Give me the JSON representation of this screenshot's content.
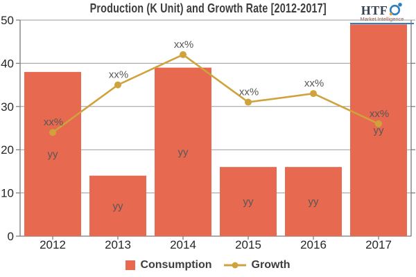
{
  "title": "Production (K Unit) and Growth Rate [2012-2017]",
  "logo": {
    "name": "HTF",
    "subtitle": "Market Intelligence"
  },
  "legend": {
    "consumption": "Consumption",
    "growth": "Growth"
  },
  "colors": {
    "bar": "#e7694f",
    "line": "#cfa23c",
    "grid": "#9a9a9a",
    "axis": "#767676",
    "tick_text": "#262626",
    "data_label": "#575757",
    "title_text": "#3d3d3d",
    "logo_blue": "#2d7fc1",
    "logo_text": "#33404f",
    "logo_sub": "#95564a",
    "logo_accent": "#e8a33d"
  },
  "chart_data": {
    "type": "combo",
    "title": "Production (K Unit) and Growth Rate [2012-2017]",
    "categories": [
      "2012",
      "2013",
      "2014",
      "2015",
      "2016",
      "2017"
    ],
    "series": [
      {
        "name": "Consumption",
        "type": "bar",
        "values": [
          38,
          14,
          39,
          16,
          16,
          49
        ],
        "color": "#e7694f",
        "point_labels": [
          "yy",
          "yy",
          "yy",
          "yy",
          "yy",
          "yy"
        ]
      },
      {
        "name": "Growth",
        "type": "line",
        "values": [
          24,
          35,
          42,
          31,
          33,
          26
        ],
        "color": "#cfa23c",
        "point_labels": [
          "xx%",
          "xx%",
          "xx%",
          "xx%",
          "xx%",
          "xx%"
        ]
      }
    ],
    "ylim": [
      0,
      50
    ],
    "yticks": [
      0,
      10,
      20,
      30,
      40,
      50
    ],
    "grid": "horizontal",
    "legend_position": "bottom"
  }
}
